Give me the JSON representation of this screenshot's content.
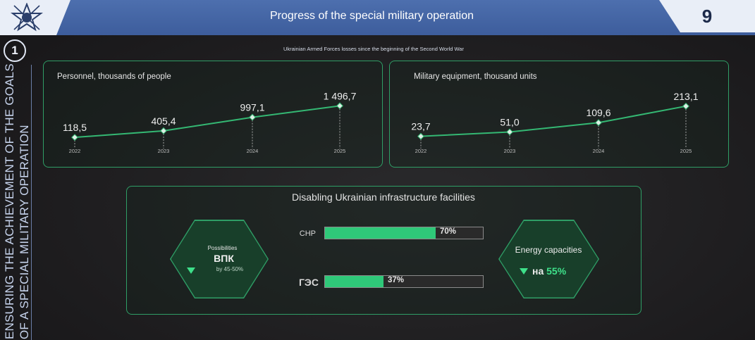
{
  "header": {
    "title": "Progress of the special military operation",
    "page_number": "9"
  },
  "sidebar": {
    "section_number": "1",
    "vertical_text": "Ensuring the achievement of the goals of a special military operation"
  },
  "subtitle": "Ukrainian Armed Forces losses since the beginning of the Second World War",
  "colors": {
    "accent_green": "#2fc879",
    "panel_border": "#2f9e66",
    "header_blue": "#4d6fae"
  },
  "chart_data": [
    {
      "type": "line",
      "title": "Personnel, thousands of people",
      "categories": [
        "2022",
        "2023",
        "2024",
        "2025"
      ],
      "values": [
        118.5,
        405.4,
        997.1,
        1496.7
      ],
      "value_labels": [
        "118,5",
        "405,4",
        "997,1",
        "1 496,7"
      ],
      "ylim": [
        0,
        1600
      ],
      "grid": false
    },
    {
      "type": "line",
      "title": "Military equipment, thousand units",
      "categories": [
        "2022",
        "2023",
        "2024",
        "2025"
      ],
      "values": [
        23.7,
        51.0,
        109.6,
        213.1
      ],
      "value_labels": [
        "23,7",
        "51,0",
        "109,6",
        "213,1"
      ],
      "ylim": [
        0,
        230
      ],
      "grid": false
    },
    {
      "type": "bar",
      "title": "Disabling Ukrainian infrastructure facilities",
      "categories": [
        "CHP",
        "ГЭС"
      ],
      "values": [
        70,
        37
      ],
      "value_labels": [
        "70%",
        "37%"
      ],
      "ylim": [
        0,
        100
      ]
    }
  ],
  "infra": {
    "left_hex": {
      "caption": "Possibilities",
      "name": "ВПК",
      "detail": "by 45-50%",
      "icon": "triangle-down-icon"
    },
    "right_hex": {
      "caption": "Energy capacities",
      "prefix": "на",
      "value": "55%",
      "icon": "triangle-down-icon"
    }
  }
}
